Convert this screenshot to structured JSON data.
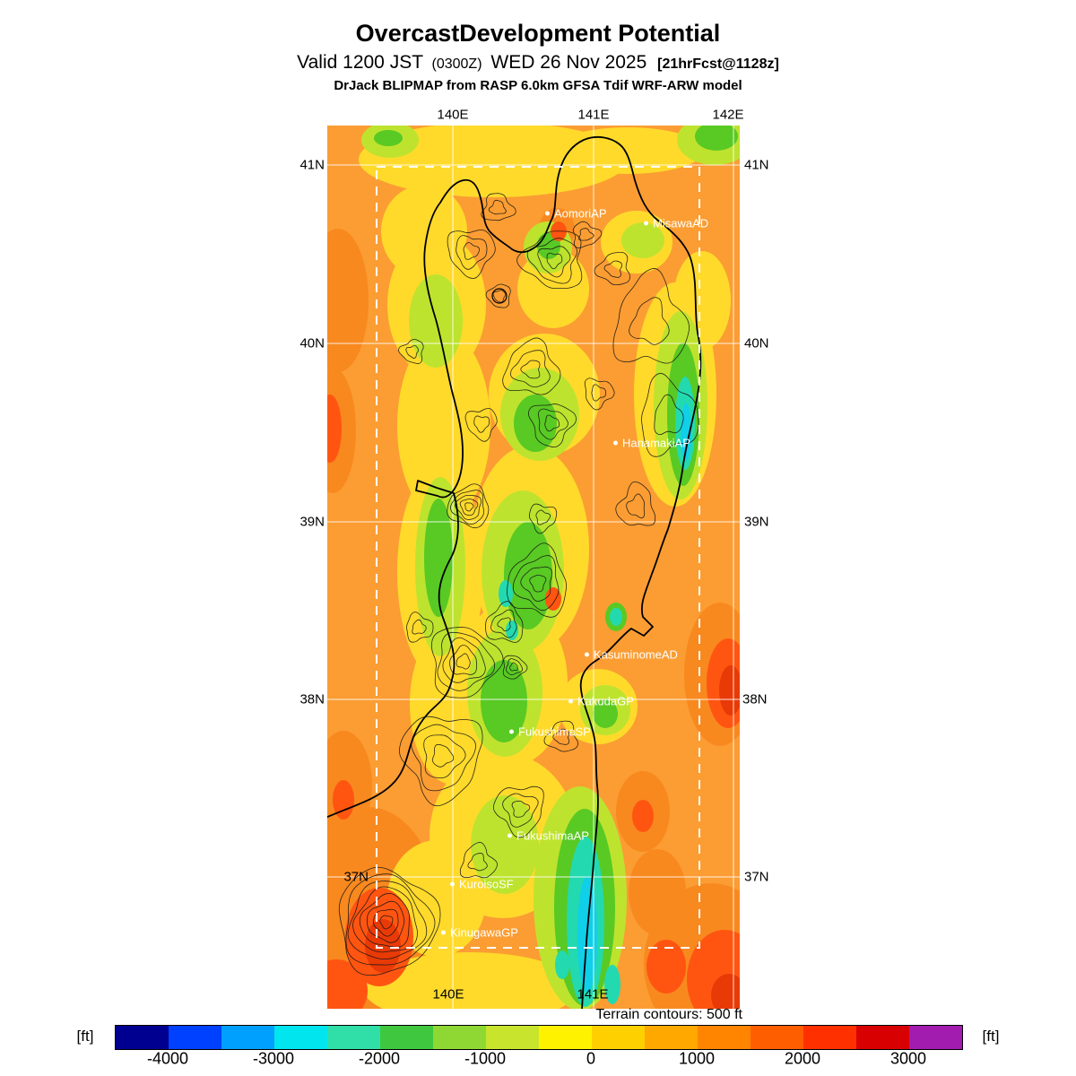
{
  "header": {
    "title": "OvercastDevelopment Potential",
    "valid_prefix": "Valid 1200 JST",
    "valid_zulu": "(0300Z)",
    "valid_date": "WED 26 Nov 2025",
    "valid_fcst": "[21hrFcst@1128z]",
    "model_line": "DrJack BLIPMAP from RASP 6.0km GFSA Tdif WRF-ARW model"
  },
  "map": {
    "lon_top": [
      "140E",
      "141E",
      "142E"
    ],
    "lon_bottom": [
      "140E",
      "141E"
    ],
    "lat_left": [
      "41N",
      "40N",
      "39N",
      "38N",
      "37N"
    ],
    "lat_right": [
      "41N",
      "40N",
      "39N",
      "38N",
      "37N"
    ],
    "stations": [
      "AomoriAP",
      "MisawaAD",
      "HanamakiAP",
      "KasuminomeAD",
      "KakudaGP",
      "FukushimaSP",
      "FukushimaAP",
      "KuroisoSF",
      "KinugawaGP"
    ],
    "terrain_note": "Terrain contours: 500 ft"
  },
  "colorbar": {
    "unit_left": "[ft]",
    "unit_right": "[ft]",
    "ticks": [
      "-4000",
      "-3000",
      "-2000",
      "-1000",
      "0",
      "1000",
      "2000",
      "3000"
    ],
    "colors": [
      "#000090",
      "#0040FF",
      "#00A0FF",
      "#00E5EE",
      "#30DFA8",
      "#3FC83F",
      "#8FD834",
      "#C8E42C",
      "#FFF200",
      "#FFD000",
      "#FFA800",
      "#FF8400",
      "#FF5E00",
      "#FF3000",
      "#D80000",
      "#A21CAF"
    ],
    "range_min_ft": -4500,
    "range_max_ft": 3500,
    "step_ft": 500
  }
}
